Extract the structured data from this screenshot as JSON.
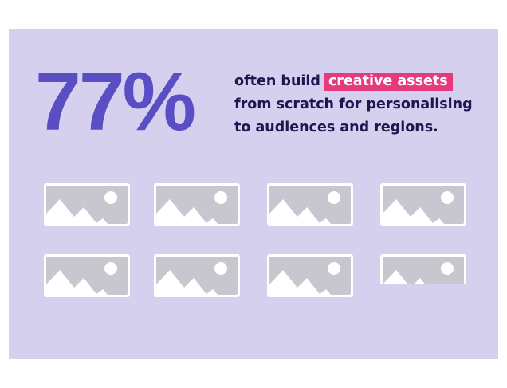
{
  "stat": "77%",
  "lines": [
    "often build",
    "from scratch for personalising",
    "to audiences and regions."
  ],
  "highlight": "creative assets"
}
